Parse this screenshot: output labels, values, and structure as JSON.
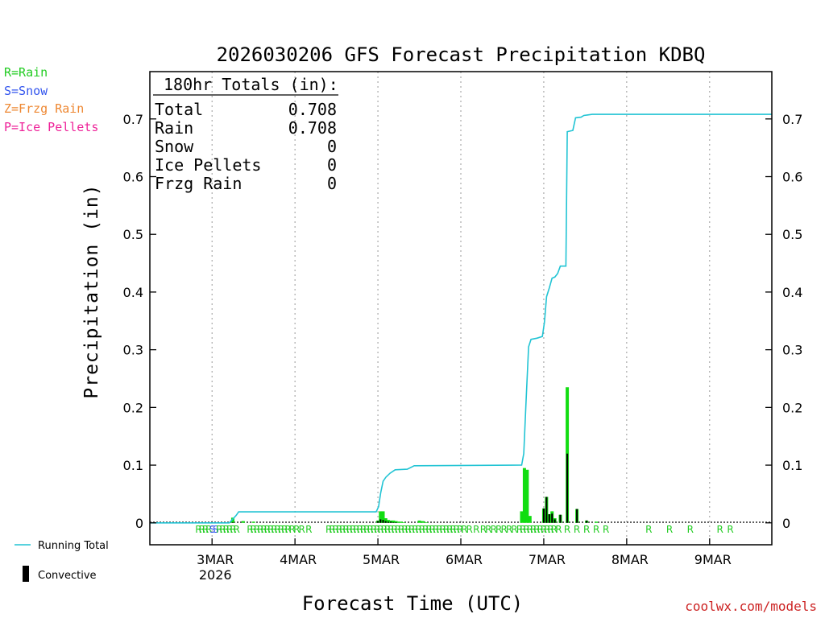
{
  "legend_types": [
    {
      "label": "R=Rain",
      "color": "#22cc22"
    },
    {
      "label": "S=Snow",
      "color": "#3355ee"
    },
    {
      "label": "Z=Frzg Rain",
      "color": "#ee8833"
    },
    {
      "label": "P=Ice Pellets",
      "color": "#ee2299"
    }
  ],
  "bottom_legend": {
    "running_total": "Running Total",
    "convective": "Convective"
  },
  "credit": "coolwx.com/models",
  "totals_box": {
    "heading": "180hr Totals (in):",
    "rows": [
      {
        "label": "Total",
        "value": "0.708"
      },
      {
        "label": "Rain",
        "value": "0.708"
      },
      {
        "label": "Snow",
        "value": "0"
      },
      {
        "label": "Ice Pellets",
        "value": "0"
      },
      {
        "label": "Frzg Rain",
        "value": "0"
      }
    ]
  },
  "colors": {
    "running_total": "#22c4d4",
    "precip_bar": "#11dd11",
    "convective_bar": "#000000",
    "rain": "#22cc22",
    "snow": "#3355ee",
    "grid": "#999999",
    "credit": "#cc2222"
  },
  "chart_data": {
    "type": "bar",
    "title": "2026030206 GFS Forecast Precipitation KDBQ",
    "xlabel": "Forecast Time (UTC)",
    "ylabel": "Precipitation (in)",
    "x_units": "forecast hour",
    "xlim": [
      0,
      180
    ],
    "ylim": [
      -0.038,
      0.782
    ],
    "yticks": [
      0,
      0.1,
      0.2,
      0.3,
      0.4,
      0.5,
      0.6,
      0.7
    ],
    "ytick_labels": [
      "0",
      "0.1",
      "0.2",
      "0.3",
      "0.4",
      "0.5",
      "0.6",
      "0.7"
    ],
    "xticks": [
      {
        "hour": 18,
        "label": "3MAR",
        "sublabel": "2026"
      },
      {
        "hour": 42,
        "label": "4MAR"
      },
      {
        "hour": 66,
        "label": "5MAR"
      },
      {
        "hour": 90,
        "label": "6MAR"
      },
      {
        "hour": 114,
        "label": "7MAR"
      },
      {
        "hour": 138,
        "label": "8MAR"
      },
      {
        "hour": 162,
        "label": "9MAR"
      }
    ],
    "precip_bars": [
      {
        "hour": 24,
        "total": 0.009,
        "convective": 0.001
      },
      {
        "hour": 27,
        "total": 0.003,
        "convective": 0.0
      },
      {
        "hour": 30,
        "total": 0.002,
        "convective": 0.0
      },
      {
        "hour": 66,
        "total": 0.004,
        "convective": 0.003
      },
      {
        "hour": 66.75,
        "total": 0.02,
        "convective": 0.006
      },
      {
        "hour": 67.5,
        "total": 0.02,
        "convective": 0.005
      },
      {
        "hour": 68.25,
        "total": 0.008,
        "convective": 0.003
      },
      {
        "hour": 69,
        "total": 0.005,
        "convective": 0.002
      },
      {
        "hour": 69.75,
        "total": 0.004,
        "convective": 0.002
      },
      {
        "hour": 70.5,
        "total": 0.004,
        "convective": 0.001
      },
      {
        "hour": 71.25,
        "total": 0.003,
        "convective": 0.001
      },
      {
        "hour": 72,
        "total": 0.002,
        "convective": 0.0
      },
      {
        "hour": 72.75,
        "total": 0.002,
        "convective": 0.0
      },
      {
        "hour": 73.5,
        "total": 0.001,
        "convective": 0.0
      },
      {
        "hour": 78,
        "total": 0.004,
        "convective": 0.0
      },
      {
        "hour": 79,
        "total": 0.003,
        "convective": 0.0
      },
      {
        "hour": 80,
        "total": 0.001,
        "convective": 0.0
      },
      {
        "hour": 107.6,
        "total": 0.02,
        "convective": 0.0
      },
      {
        "hour": 108.4,
        "total": 0.095,
        "convective": 0.0
      },
      {
        "hour": 109.2,
        "total": 0.092,
        "convective": 0.0
      },
      {
        "hour": 110,
        "total": 0.012,
        "convective": 0.0
      },
      {
        "hour": 114,
        "total": 0.025,
        "convective": 0.025
      },
      {
        "hour": 114.8,
        "total": 0.045,
        "convective": 0.045
      },
      {
        "hour": 115.6,
        "total": 0.015,
        "convective": 0.015
      },
      {
        "hour": 116.4,
        "total": 0.02,
        "convective": 0.016
      },
      {
        "hour": 117.2,
        "total": 0.008,
        "convective": 0.006
      },
      {
        "hour": 118.8,
        "total": 0.014,
        "convective": 0.014
      },
      {
        "hour": 120.8,
        "total": 0.235,
        "convective": 0.12
      },
      {
        "hour": 123.6,
        "total": 0.024,
        "convective": 0.024
      },
      {
        "hour": 126.4,
        "total": 0.004,
        "convective": 0.004
      },
      {
        "hour": 129.2,
        "total": 0.002,
        "convective": 0.0
      }
    ],
    "running_total": [
      {
        "hour": 0,
        "value": 0
      },
      {
        "hour": 23,
        "value": 0
      },
      {
        "hour": 25,
        "value": 0.013
      },
      {
        "hour": 25.7,
        "value": 0.019
      },
      {
        "hour": 65.5,
        "value": 0.019
      },
      {
        "hour": 66.2,
        "value": 0.028
      },
      {
        "hour": 66.8,
        "value": 0.052
      },
      {
        "hour": 67.5,
        "value": 0.072
      },
      {
        "hour": 68.3,
        "value": 0.079
      },
      {
        "hour": 69.5,
        "value": 0.086
      },
      {
        "hour": 71,
        "value": 0.092
      },
      {
        "hour": 74.5,
        "value": 0.093
      },
      {
        "hour": 76.5,
        "value": 0.099
      },
      {
        "hour": 107.6,
        "value": 0.1
      },
      {
        "hour": 108.2,
        "value": 0.12
      },
      {
        "hour": 108.9,
        "value": 0.215
      },
      {
        "hour": 109.6,
        "value": 0.305
      },
      {
        "hour": 110.3,
        "value": 0.318
      },
      {
        "hour": 112,
        "value": 0.32
      },
      {
        "hour": 113.6,
        "value": 0.323
      },
      {
        "hour": 114.2,
        "value": 0.348
      },
      {
        "hour": 114.8,
        "value": 0.392
      },
      {
        "hour": 115.6,
        "value": 0.407
      },
      {
        "hour": 116.4,
        "value": 0.424
      },
      {
        "hour": 117.2,
        "value": 0.426
      },
      {
        "hour": 118,
        "value": 0.432
      },
      {
        "hour": 118.8,
        "value": 0.445
      },
      {
        "hour": 120.4,
        "value": 0.445
      },
      {
        "hour": 120.8,
        "value": 0.678
      },
      {
        "hour": 122.4,
        "value": 0.68
      },
      {
        "hour": 123.2,
        "value": 0.702
      },
      {
        "hour": 124.8,
        "value": 0.703
      },
      {
        "hour": 125.6,
        "value": 0.706
      },
      {
        "hour": 126.8,
        "value": 0.707
      },
      {
        "hour": 128,
        "value": 0.708
      },
      {
        "hour": 180,
        "value": 0.708
      }
    ],
    "ptype_markers": [
      {
        "hour": 14.1,
        "type": "R"
      },
      {
        "hour": 15.1,
        "type": "R"
      },
      {
        "hour": 16.1,
        "type": "R"
      },
      {
        "hour": 17.1,
        "type": "R"
      },
      {
        "hour": 18.1,
        "type": "S"
      },
      {
        "hour": 19.1,
        "type": "S"
      },
      {
        "hour": 20.1,
        "type": "R"
      },
      {
        "hour": 21.1,
        "type": "R"
      },
      {
        "hour": 22.1,
        "type": "R"
      },
      {
        "hour": 23.1,
        "type": "R"
      },
      {
        "hour": 24.1,
        "type": "R"
      },
      {
        "hour": 25.1,
        "type": "R"
      },
      {
        "hour": 29,
        "type": "R"
      },
      {
        "hour": 30,
        "type": "R"
      },
      {
        "hour": 31,
        "type": "R"
      },
      {
        "hour": 32,
        "type": "R"
      },
      {
        "hour": 33,
        "type": "R"
      },
      {
        "hour": 34,
        "type": "R"
      },
      {
        "hour": 35,
        "type": "R"
      },
      {
        "hour": 36,
        "type": "R"
      },
      {
        "hour": 37,
        "type": "R"
      },
      {
        "hour": 38,
        "type": "R"
      },
      {
        "hour": 39,
        "type": "R"
      },
      {
        "hour": 40,
        "type": "R"
      },
      {
        "hour": 41.2,
        "type": "R"
      },
      {
        "hour": 42.5,
        "type": "R"
      },
      {
        "hour": 44,
        "type": "R"
      },
      {
        "hour": 46,
        "type": "R"
      },
      {
        "hour": 51.8,
        "type": "R"
      },
      {
        "hour": 52.8,
        "type": "R"
      },
      {
        "hour": 53.8,
        "type": "R"
      },
      {
        "hour": 54.8,
        "type": "R"
      },
      {
        "hour": 55.8,
        "type": "R"
      },
      {
        "hour": 56.8,
        "type": "R"
      },
      {
        "hour": 57.8,
        "type": "R"
      },
      {
        "hour": 58.8,
        "type": "R"
      },
      {
        "hour": 59.8,
        "type": "R"
      },
      {
        "hour": 60.8,
        "type": "R"
      },
      {
        "hour": 61.8,
        "type": "R"
      },
      {
        "hour": 62.8,
        "type": "R"
      },
      {
        "hour": 63.8,
        "type": "R"
      },
      {
        "hour": 64.8,
        "type": "R"
      },
      {
        "hour": 65.8,
        "type": "R"
      },
      {
        "hour": 66.8,
        "type": "R"
      },
      {
        "hour": 67.8,
        "type": "R"
      },
      {
        "hour": 68.8,
        "type": "R"
      },
      {
        "hour": 69.8,
        "type": "R"
      },
      {
        "hour": 70.8,
        "type": "R"
      },
      {
        "hour": 71.8,
        "type": "R"
      },
      {
        "hour": 72.8,
        "type": "R"
      },
      {
        "hour": 73.8,
        "type": "R"
      },
      {
        "hour": 74.8,
        "type": "R"
      },
      {
        "hour": 75.8,
        "type": "R"
      },
      {
        "hour": 76.8,
        "type": "R"
      },
      {
        "hour": 77.8,
        "type": "R"
      },
      {
        "hour": 78.8,
        "type": "R"
      },
      {
        "hour": 79.8,
        "type": "R"
      },
      {
        "hour": 80.8,
        "type": "R"
      },
      {
        "hour": 81.8,
        "type": "R"
      },
      {
        "hour": 82.8,
        "type": "R"
      },
      {
        "hour": 83.8,
        "type": "R"
      },
      {
        "hour": 84.8,
        "type": "R"
      },
      {
        "hour": 85.8,
        "type": "R"
      },
      {
        "hour": 86.8,
        "type": "R"
      },
      {
        "hour": 87.8,
        "type": "R"
      },
      {
        "hour": 88.8,
        "type": "R"
      },
      {
        "hour": 89.8,
        "type": "R"
      },
      {
        "hour": 91,
        "type": "R"
      },
      {
        "hour": 92.5,
        "type": "R"
      },
      {
        "hour": 94.5,
        "type": "R"
      },
      {
        "hour": 96.5,
        "type": "R"
      },
      {
        "hour": 98,
        "type": "R"
      },
      {
        "hour": 99.5,
        "type": "R"
      },
      {
        "hour": 101,
        "type": "R"
      },
      {
        "hour": 102.5,
        "type": "R"
      },
      {
        "hour": 104,
        "type": "R"
      },
      {
        "hour": 105.5,
        "type": "R"
      },
      {
        "hour": 107,
        "type": "R"
      },
      {
        "hour": 108,
        "type": "R"
      },
      {
        "hour": 109,
        "type": "R"
      },
      {
        "hour": 110,
        "type": "R"
      },
      {
        "hour": 111,
        "type": "R"
      },
      {
        "hour": 112,
        "type": "R"
      },
      {
        "hour": 113,
        "type": "R"
      },
      {
        "hour": 114,
        "type": "R"
      },
      {
        "hour": 115,
        "type": "R"
      },
      {
        "hour": 116,
        "type": "R"
      },
      {
        "hour": 117,
        "type": "R"
      },
      {
        "hour": 118.3,
        "type": "R"
      },
      {
        "hour": 120.8,
        "type": "R"
      },
      {
        "hour": 123.6,
        "type": "R"
      },
      {
        "hour": 126.4,
        "type": "R"
      },
      {
        "hour": 129.2,
        "type": "R"
      },
      {
        "hour": 132,
        "type": "R"
      },
      {
        "hour": 144.4,
        "type": "R"
      },
      {
        "hour": 150.4,
        "type": "R"
      },
      {
        "hour": 156.4,
        "type": "R"
      },
      {
        "hour": 165,
        "type": "R"
      },
      {
        "hour": 168,
        "type": "R"
      }
    ]
  }
}
